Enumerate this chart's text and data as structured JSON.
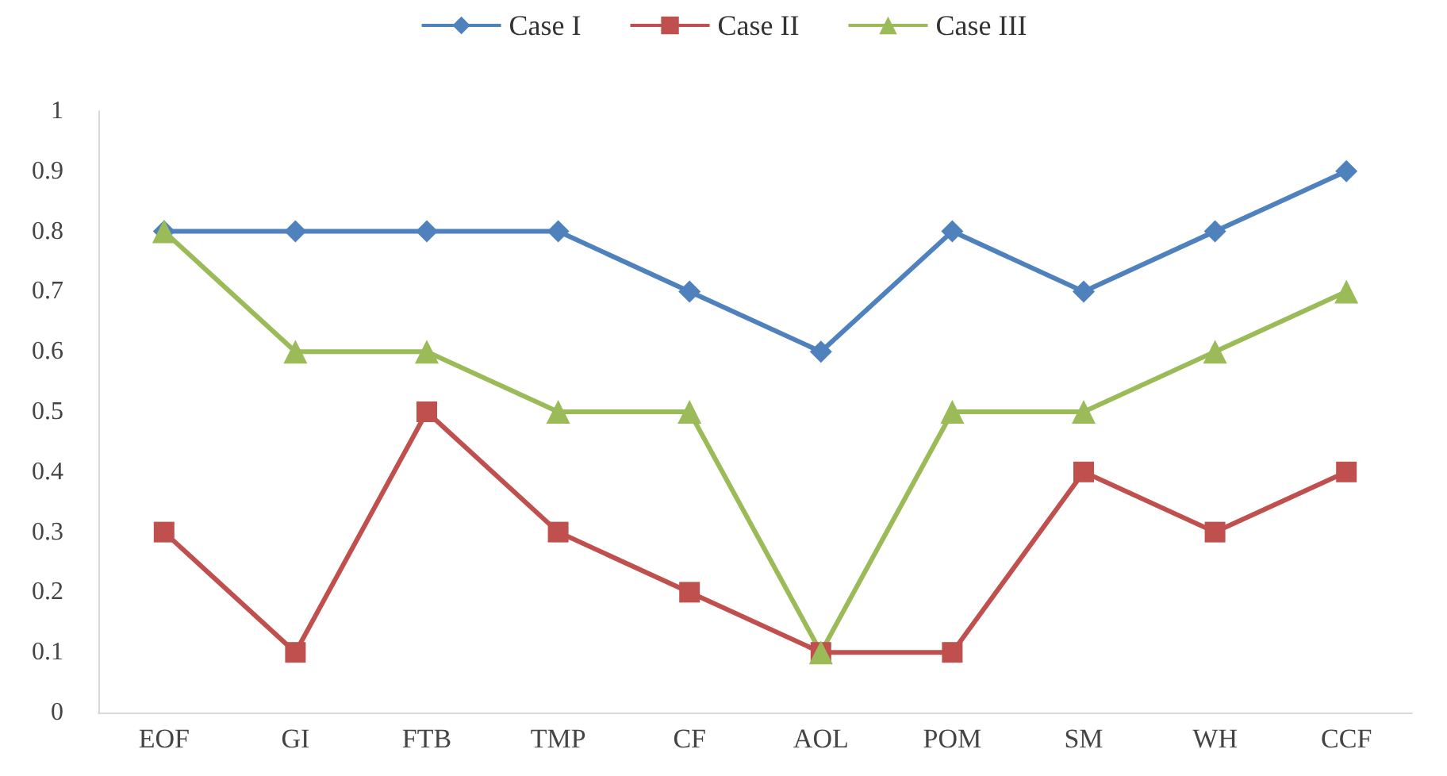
{
  "chart_data": {
    "type": "line",
    "categories": [
      "EOF",
      "GI",
      "FTB",
      "TMP",
      "CF",
      "AOL",
      "POM",
      "SM",
      "WH",
      "CCF"
    ],
    "series": [
      {
        "name": "Case I",
        "color": "#4f81bd",
        "marker": "diamond",
        "values": [
          0.8,
          0.8,
          0.8,
          0.8,
          0.7,
          0.6,
          0.8,
          0.7,
          0.8,
          0.9
        ]
      },
      {
        "name": "Case II",
        "color": "#c0504d",
        "marker": "square",
        "values": [
          0.3,
          0.1,
          0.5,
          0.3,
          0.2,
          0.1,
          0.1,
          0.4,
          0.3,
          0.4
        ]
      },
      {
        "name": "Case III",
        "color": "#9bbb59",
        "marker": "triangle",
        "values": [
          0.8,
          0.6,
          0.6,
          0.5,
          0.5,
          0.1,
          0.5,
          0.5,
          0.6,
          0.7
        ]
      }
    ],
    "ylim": [
      0,
      1
    ],
    "yticks": [
      0,
      0.1,
      0.2,
      0.3,
      0.4,
      0.5,
      0.6,
      0.7,
      0.8,
      0.9,
      1
    ],
    "grid": false,
    "legend": "top"
  }
}
